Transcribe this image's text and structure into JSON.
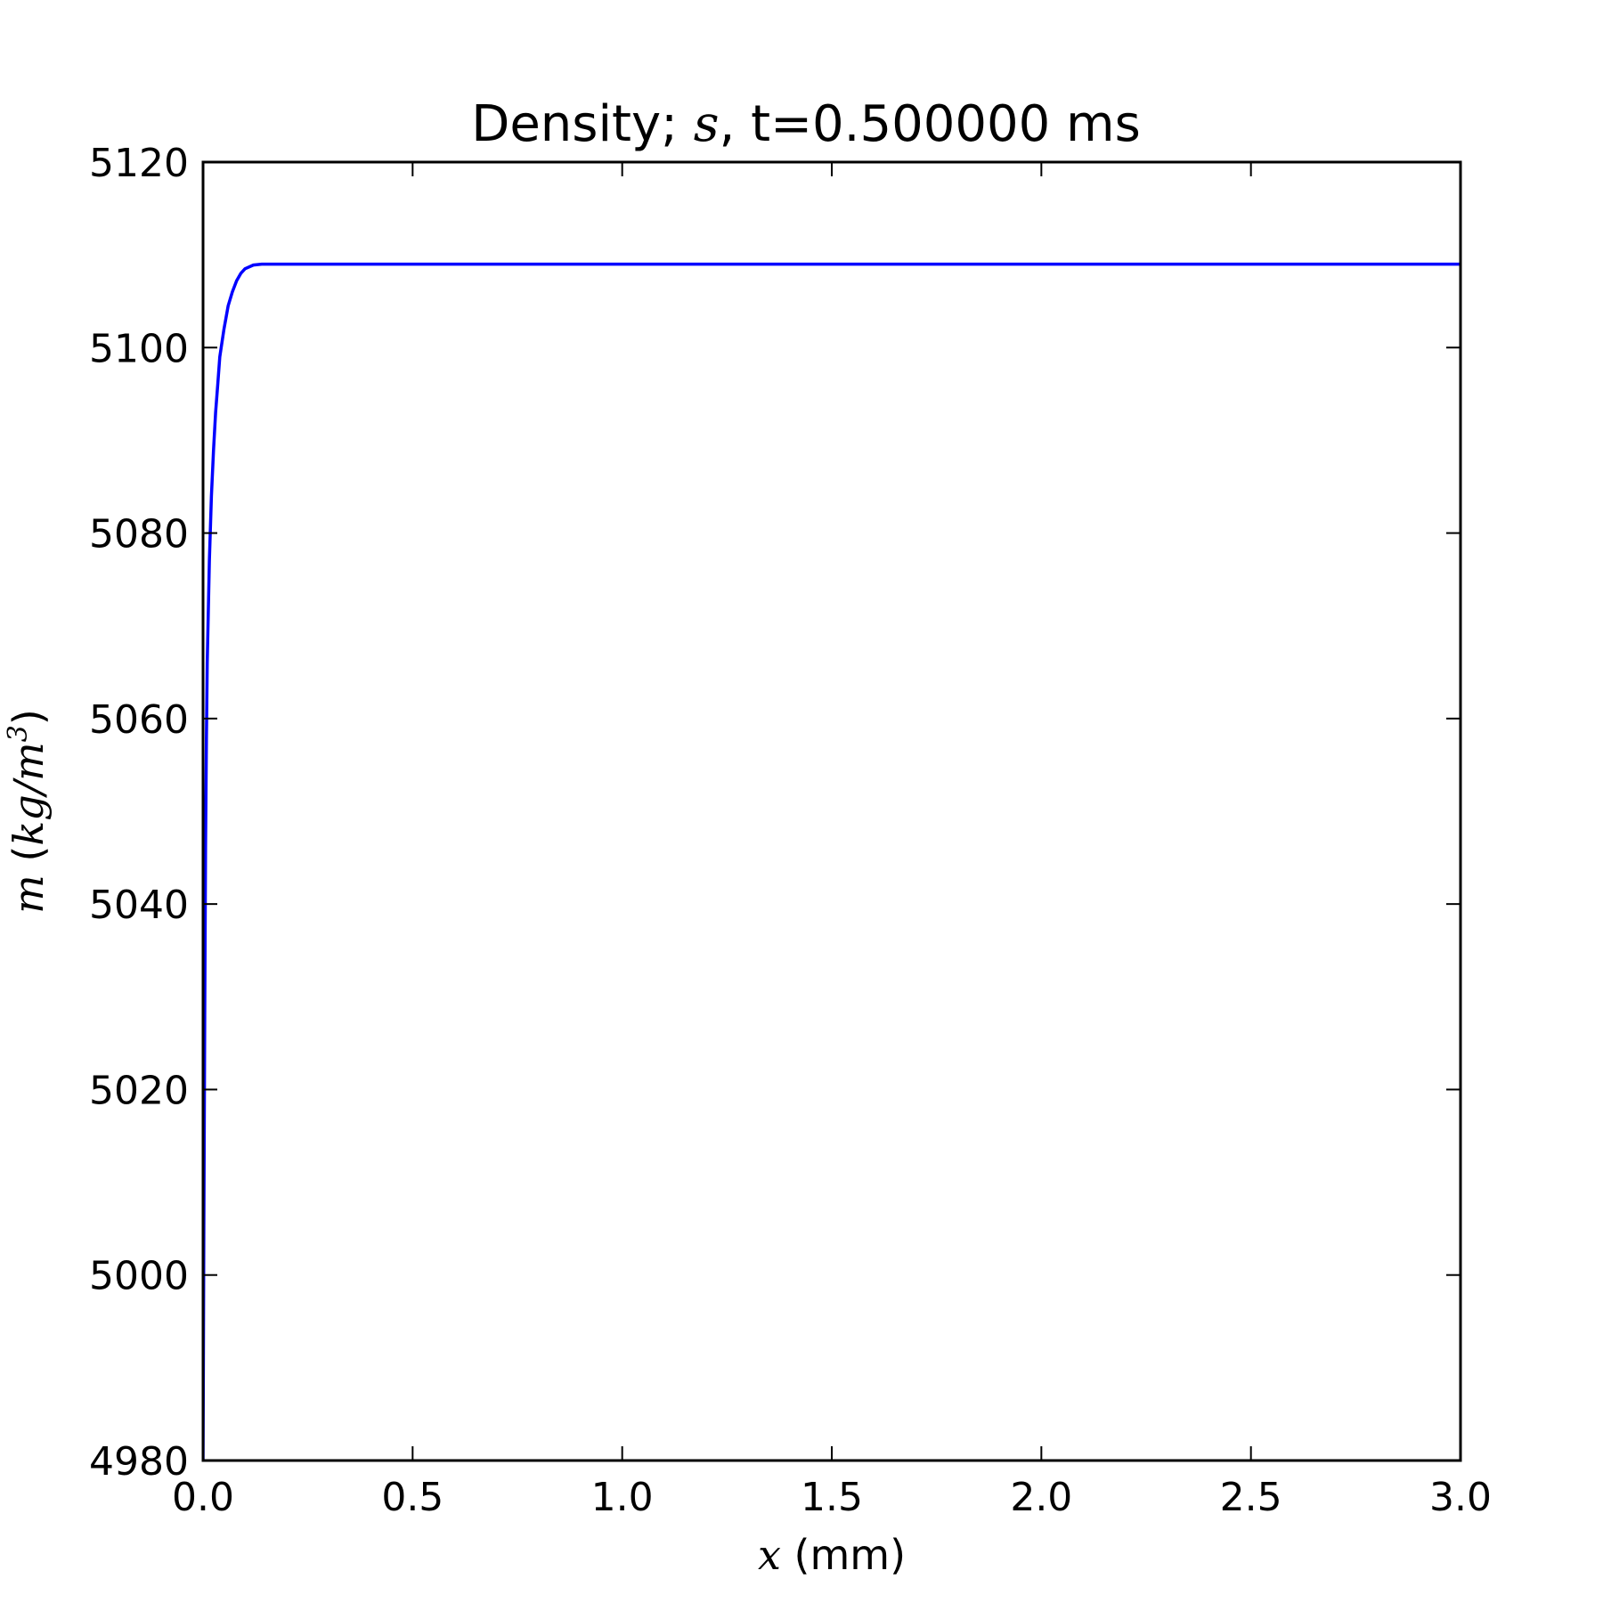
{
  "chart_data": {
    "type": "line",
    "title": {
      "prefix": "Density; ",
      "math": "s",
      "suffix": ", t=0.500000 ms"
    },
    "xlabel": {
      "math": "x",
      "text": " (mm)"
    },
    "ylabel": {
      "math_var": "m",
      "open": " (",
      "math_unit": "kg/m",
      "sup": "3",
      "close": ")"
    },
    "xlim": [
      0.0,
      3.0
    ],
    "ylim": [
      4980,
      5120
    ],
    "xticks": [
      "0.0",
      "0.5",
      "1.0",
      "1.5",
      "2.0",
      "2.5",
      "3.0"
    ],
    "yticks": [
      "4980",
      "5000",
      "5020",
      "5040",
      "5060",
      "5080",
      "5100",
      "5120"
    ],
    "grid": false,
    "series": [
      {
        "color": "#0000ff",
        "x": [
          0.0,
          0.002,
          0.004,
          0.006,
          0.008,
          0.01,
          0.015,
          0.02,
          0.025,
          0.03,
          0.035,
          0.04,
          0.05,
          0.06,
          0.07,
          0.08,
          0.09,
          0.1,
          0.12,
          0.14,
          0.16,
          0.2,
          0.3,
          0.5,
          1.0,
          1.5,
          2.0,
          2.5,
          3.0
        ],
        "y": [
          4980,
          5005,
          5028,
          5046,
          5058,
          5066,
          5077,
          5084,
          5089,
          5093,
          5096,
          5099,
          5102,
          5104.5,
          5106,
          5107.2,
          5108,
          5108.5,
          5108.9,
          5109,
          5109,
          5109,
          5109,
          5109,
          5109,
          5109,
          5109,
          5109,
          5109
        ]
      }
    ]
  }
}
